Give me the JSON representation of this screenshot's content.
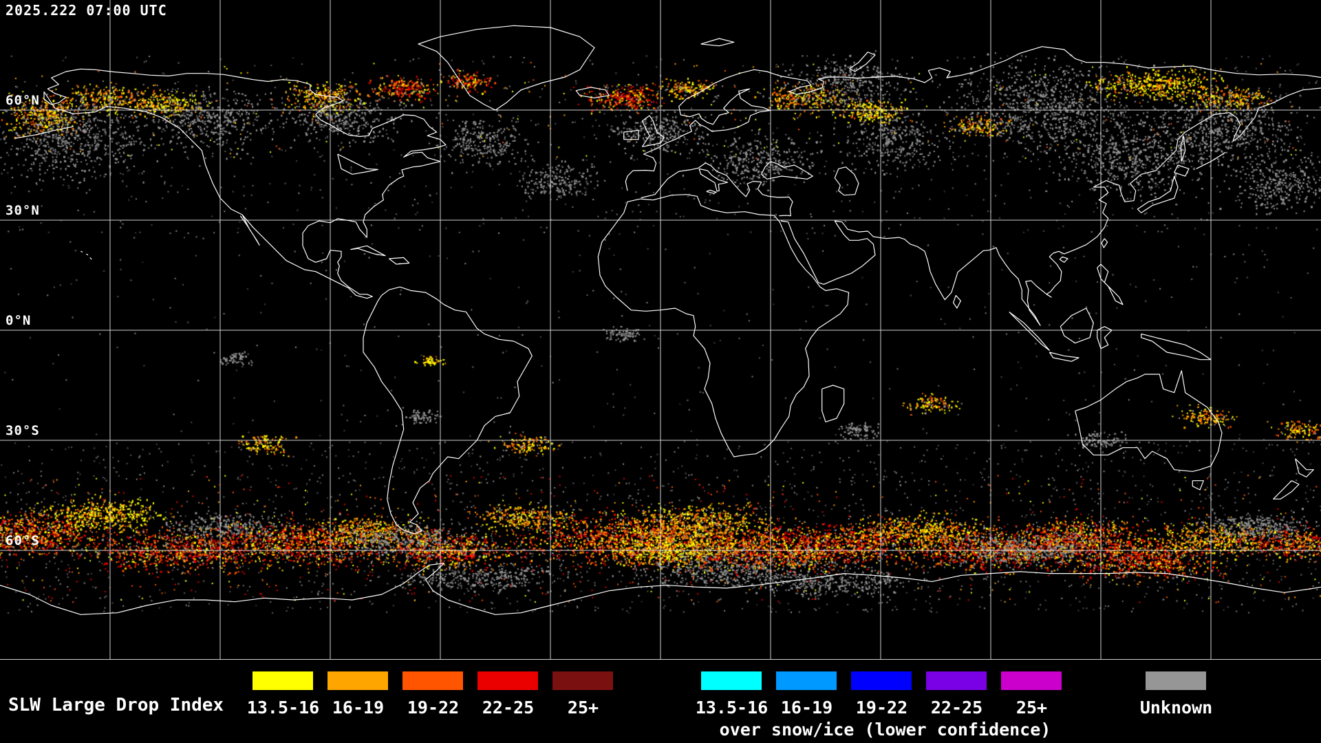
{
  "header": {
    "timestamp": "2025.222 07:00 UTC"
  },
  "map": {
    "lat_labels": [
      "60°N",
      "30°N",
      "0°N",
      "30°S",
      "60°S"
    ],
    "background_color": "#000000",
    "grid_color": "#e8e8e8",
    "coastline_color": "#ffffff"
  },
  "legend": {
    "title": "SLW Large Drop Index",
    "scale": [
      {
        "label": "13.5-16",
        "color": "#ffff00"
      },
      {
        "label": "16-19",
        "color": "#ffa500"
      },
      {
        "label": "19-22",
        "color": "#ff5500"
      },
      {
        "label": "22-25",
        "color": "#eb0000"
      },
      {
        "label": "25+",
        "color": "#7a1010"
      }
    ],
    "snow_scale": [
      {
        "label": "13.5-16",
        "color": "#00ffff"
      },
      {
        "label": "16-19",
        "color": "#0099ff"
      },
      {
        "label": "19-22",
        "color": "#0000ff"
      },
      {
        "label": "22-25",
        "color": "#7a00e6"
      },
      {
        "label": "25+",
        "color": "#cc00cc"
      }
    ],
    "snow_caption": "over snow/ice (lower confidence)",
    "unknown_label": "Unknown",
    "unknown_color": "#969696"
  }
}
